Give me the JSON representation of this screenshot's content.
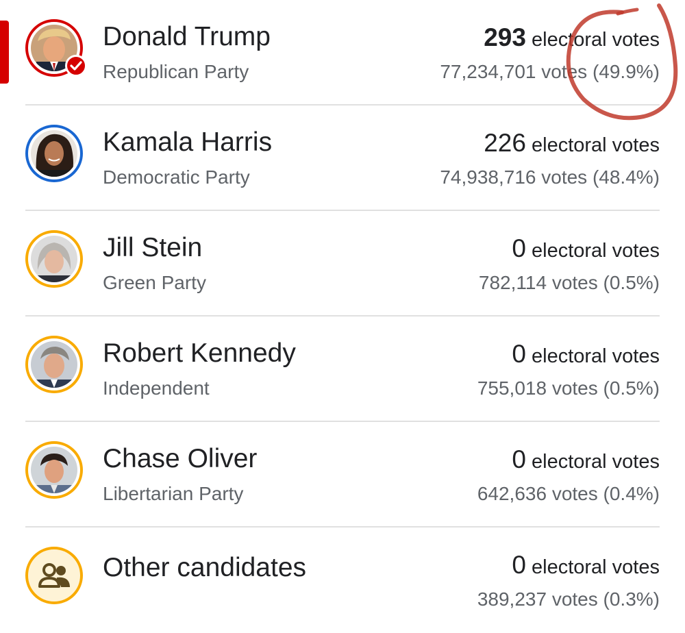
{
  "colors": {
    "winner_red": "#d50000",
    "republican_ring": "#d50000",
    "democrat_ring": "#1967d2",
    "third_party_ring": "#f9ab00",
    "annotation_red": "#c0392b"
  },
  "candidates": [
    {
      "name": "Donald Trump",
      "party": "Republican Party",
      "electoral_count": "293",
      "electoral_label": "electoral votes",
      "popular": "77,234,701 votes (49.9%)",
      "winner": true,
      "ring_color": "#d50000",
      "photo": "donald-trump-photo"
    },
    {
      "name": "Kamala Harris",
      "party": "Democratic Party",
      "electoral_count": "226",
      "electoral_label": "electoral votes",
      "popular": "74,938,716 votes (48.4%)",
      "winner": false,
      "ring_color": "#1967d2",
      "photo": "kamala-harris-photo"
    },
    {
      "name": "Jill Stein",
      "party": "Green Party",
      "electoral_count": "0",
      "electoral_label": "electoral votes",
      "popular": "782,114 votes (0.5%)",
      "winner": false,
      "ring_color": "#f9ab00",
      "photo": "jill-stein-photo"
    },
    {
      "name": "Robert Kennedy",
      "party": "Independent",
      "electoral_count": "0",
      "electoral_label": "electoral votes",
      "popular": "755,018 votes (0.5%)",
      "winner": false,
      "ring_color": "#f9ab00",
      "photo": "robert-kennedy-photo"
    },
    {
      "name": "Chase Oliver",
      "party": "Libertarian Party",
      "electoral_count": "0",
      "electoral_label": "electoral votes",
      "popular": "642,636 votes (0.4%)",
      "winner": false,
      "ring_color": "#f9ab00",
      "photo": "chase-oliver-photo"
    },
    {
      "name": "Other candidates",
      "party": "",
      "electoral_count": "0",
      "electoral_label": "electoral votes",
      "popular": "389,237 votes (0.3%)",
      "winner": false,
      "ring_color": "#f9ab00",
      "photo": "people-group-icon"
    }
  ]
}
